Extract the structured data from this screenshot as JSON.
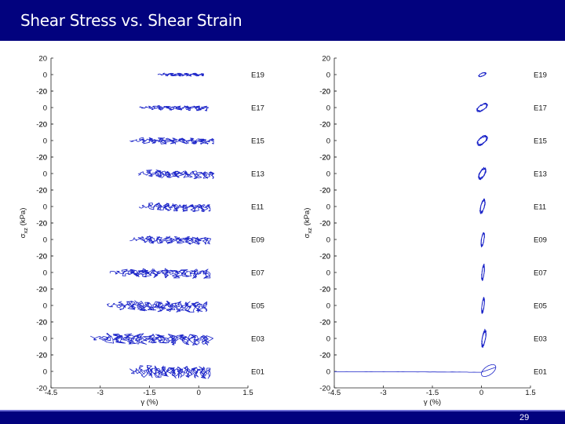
{
  "slide": {
    "title": "Shear Stress vs. Shear Strain",
    "page_number": "29",
    "colors": {
      "title_bar": "#02027e",
      "title_text": "#ffffff",
      "trace": "#1a23c8"
    }
  },
  "chart_data": [
    {
      "type": "line",
      "layout": "stacked-panels",
      "xlabel": "γ (%)",
      "ylabel": "σxz (kPa)",
      "ylabel_main": "σ",
      "ylabel_sub": "xz",
      "ylabel_unit": "(kPa)",
      "xlim": [
        -4.5,
        1.5
      ],
      "x_ticks": [
        "-4.5",
        "-3",
        "-1.5",
        "0",
        "1.5"
      ],
      "ylim_per_panel": [
        -20,
        20
      ],
      "y_ticks_per_panel": [
        "20",
        "0",
        "-20"
      ],
      "grid": false,
      "series": [
        {
          "name": "E19",
          "xmin": -1.25,
          "xmax": 0.15,
          "amp": 2,
          "loops": 10,
          "drift": 0.02
        },
        {
          "name": "E17",
          "xmin": -1.8,
          "xmax": 0.25,
          "amp": 3,
          "loops": 12,
          "drift": 0.12
        },
        {
          "name": "E15",
          "xmin": -2.1,
          "xmax": 0.45,
          "amp": 4,
          "loops": 14,
          "drift": 0.1
        },
        {
          "name": "E13",
          "xmin": -1.85,
          "xmax": 0.45,
          "amp": 5,
          "loops": 14,
          "drift": 0.15
        },
        {
          "name": "E11",
          "xmin": -1.8,
          "xmax": 0.35,
          "amp": 5,
          "loops": 14,
          "drift": 0.18
        },
        {
          "name": "E09",
          "xmin": -2.1,
          "xmax": 0.35,
          "amp": 5,
          "loops": 15,
          "drift": 0.12
        },
        {
          "name": "E07",
          "xmin": -2.7,
          "xmax": 0.35,
          "amp": 6,
          "loops": 17,
          "drift": 0.1
        },
        {
          "name": "E05",
          "xmin": -2.8,
          "xmax": 0.25,
          "amp": 7,
          "loops": 18,
          "drift": 0.1
        },
        {
          "name": "E03",
          "xmin": -3.3,
          "xmax": 0.35,
          "amp": 7,
          "loops": 19,
          "drift": 0.1
        },
        {
          "name": "E01",
          "xmin": -2.1,
          "xmax": 0.35,
          "amp": 8,
          "loops": 18,
          "drift": 0.08
        }
      ]
    },
    {
      "type": "line",
      "layout": "stacked-panels",
      "xlabel": "γ (%)",
      "ylabel": "σxz (kPa)",
      "ylabel_main": "σ",
      "ylabel_sub": "xz",
      "ylabel_unit": "(kPa)",
      "xlim": [
        -4.5,
        1.5
      ],
      "x_ticks": [
        "-4.5",
        "-3",
        "-1.5",
        "0",
        "1.5"
      ],
      "ylim_per_panel": [
        -20,
        20
      ],
      "y_ticks_per_panel": [
        "20",
        "0",
        "-20"
      ],
      "grid": false,
      "series": [
        {
          "name": "E19",
          "xmin": -0.1,
          "xmax": 0.15,
          "amp": 3,
          "loops": 3
        },
        {
          "name": "E17",
          "xmin": -0.15,
          "xmax": 0.2,
          "amp": 6,
          "loops": 4
        },
        {
          "name": "E15",
          "xmin": -0.15,
          "xmax": 0.2,
          "amp": 7,
          "loops": 4
        },
        {
          "name": "E13",
          "xmin": -0.1,
          "xmax": 0.15,
          "amp": 8,
          "loops": 4
        },
        {
          "name": "E11",
          "xmin": -0.05,
          "xmax": 0.12,
          "amp": 10,
          "loops": 4
        },
        {
          "name": "E09",
          "xmin": -0.02,
          "xmax": 0.1,
          "amp": 10,
          "loops": 4
        },
        {
          "name": "E07",
          "xmin": 0.0,
          "xmax": 0.1,
          "amp": 11,
          "loops": 4
        },
        {
          "name": "E05",
          "xmin": 0.0,
          "xmax": 0.1,
          "amp": 11,
          "loops": 4
        },
        {
          "name": "E03",
          "xmin": 0.0,
          "xmax": 0.15,
          "amp": 12,
          "loops": 4
        },
        {
          "name": "E01",
          "xmin": -4.5,
          "xmax": 0.45,
          "amp": 12,
          "loops": 3
        }
      ]
    }
  ]
}
